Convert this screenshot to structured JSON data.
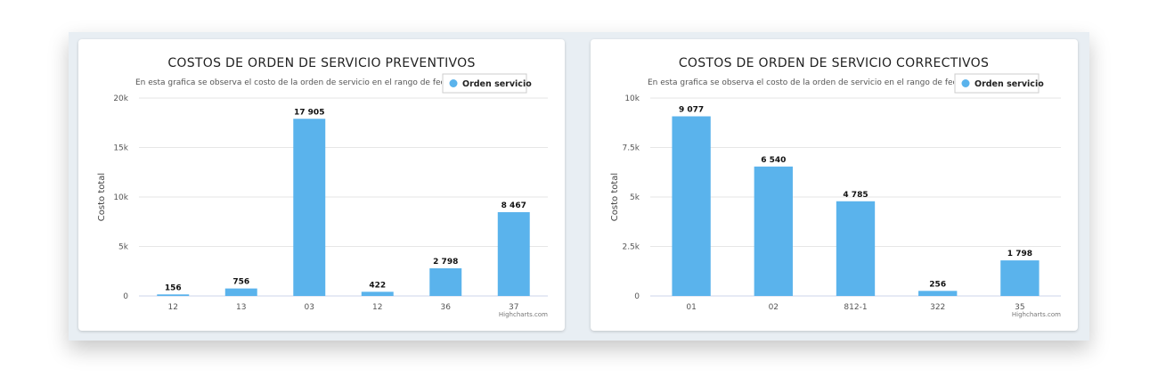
{
  "bar_color": "#5ab3ec",
  "chart_data": [
    {
      "type": "bar",
      "title": "COSTOS DE ORDEN DE SERVICIO PREVENTIVOS",
      "subtitle": "En esta grafica se observa el costo de la orden de servicio en el rango de fechas",
      "legend": "Orden servicio",
      "ylabel": "Costo total",
      "xlabel": "",
      "credit": "Highcharts.com",
      "ylim": [
        0,
        20000
      ],
      "yticks": [
        0,
        5000,
        10000,
        15000,
        20000
      ],
      "ytick_labels": [
        "0",
        "5k",
        "10k",
        "15k",
        "20k"
      ],
      "categories": [
        "12",
        "13",
        "03",
        "12",
        "36",
        "37"
      ],
      "values": [
        156,
        756,
        17905,
        422,
        2798,
        8467
      ],
      "data_labels": [
        "156",
        "756",
        "17 905",
        "422",
        "2 798",
        "8 467"
      ]
    },
    {
      "type": "bar",
      "title": "COSTOS DE ORDEN DE SERVICIO CORRECTIVOS",
      "subtitle": "En esta grafica se observa el costo de la orden de servicio en el rango de fechas",
      "legend": "Orden servicio",
      "ylabel": "Costo total",
      "xlabel": "",
      "credit": "Highcharts.com",
      "ylim": [
        0,
        10000
      ],
      "yticks": [
        0,
        2500,
        5000,
        7500,
        10000
      ],
      "ytick_labels": [
        "0",
        "2.5k",
        "5k",
        "7.5k",
        "10k"
      ],
      "categories": [
        "01",
        "02",
        "812-1",
        "322",
        "35"
      ],
      "values": [
        9077,
        6540,
        4785,
        256,
        1798
      ],
      "data_labels": [
        "9 077",
        "6 540",
        "4 785",
        "256",
        "1 798"
      ]
    }
  ]
}
